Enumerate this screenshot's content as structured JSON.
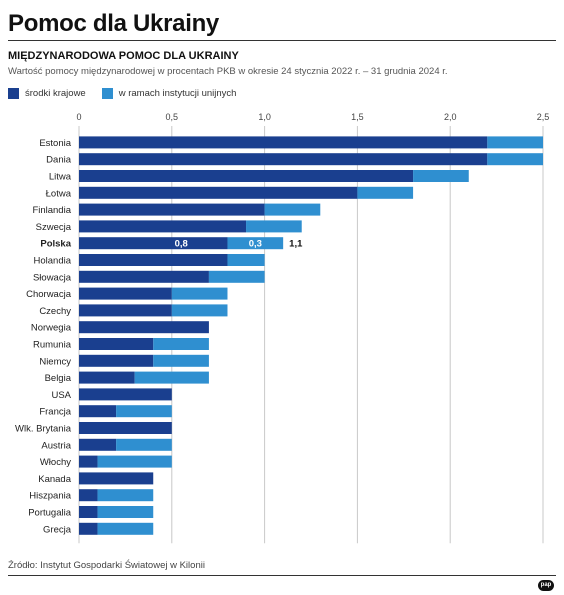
{
  "header": {
    "title": "Pomoc dla Ukrainy",
    "subtitle": "MIĘDZYNARODOWA POMOC DLA UKRAINY",
    "description": "Wartość pomocy międzynarodowej w procentach PKB w okresie 24 stycznia 2022 r. – 31 grudnia 2024 r."
  },
  "legend": {
    "national": "środki krajowe",
    "eu": "w ramach instytucji unijnych"
  },
  "colors": {
    "national": "#1a3f8f",
    "eu": "#2f8fd0",
    "grid": "#c8c8c8"
  },
  "chart_data": {
    "type": "bar",
    "orientation": "horizontal",
    "stacked": true,
    "xlim": [
      0,
      2.5
    ],
    "ticks": [
      "0",
      "0,5",
      "1,0",
      "1,5",
      "2,0",
      "2,5"
    ],
    "tick_values": [
      0,
      0.5,
      1.0,
      1.5,
      2.0,
      2.5
    ],
    "grid": true,
    "legend_position": "top-left",
    "categories": [
      "Estonia",
      "Dania",
      "Litwa",
      "Łotwa",
      "Finlandia",
      "Szwecja",
      "Polska",
      "Holandia",
      "Słowacja",
      "Chorwacja",
      "Czechy",
      "Norwegia",
      "Rumunia",
      "Niemcy",
      "Belgia",
      "USA",
      "Francja",
      "Wlk. Brytania",
      "Austria",
      "Włochy",
      "Kanada",
      "Hiszpania",
      "Portugalia",
      "Grecja"
    ],
    "series": [
      {
        "name": "środki krajowe",
        "values": [
          2.2,
          2.2,
          1.8,
          1.5,
          1.0,
          0.9,
          0.8,
          0.8,
          0.7,
          0.5,
          0.5,
          0.7,
          0.4,
          0.4,
          0.3,
          0.5,
          0.2,
          0.5,
          0.2,
          0.1,
          0.4,
          0.1,
          0.1,
          0.1
        ]
      },
      {
        "name": "w ramach instytucji unijnych",
        "values": [
          0.3,
          0.3,
          0.3,
          0.3,
          0.3,
          0.3,
          0.3,
          0.2,
          0.3,
          0.3,
          0.3,
          0.0,
          0.3,
          0.3,
          0.4,
          0.0,
          0.3,
          0.0,
          0.3,
          0.4,
          0.0,
          0.3,
          0.3,
          0.3
        ]
      }
    ],
    "highlight": {
      "category": "Polska",
      "national_label": "0,8",
      "eu_label": "0,3",
      "total_label": "1,1"
    }
  },
  "footer": {
    "source": "Źródło: Instytut Gospodarki Światowej w Kilonii",
    "logo": "pap"
  }
}
